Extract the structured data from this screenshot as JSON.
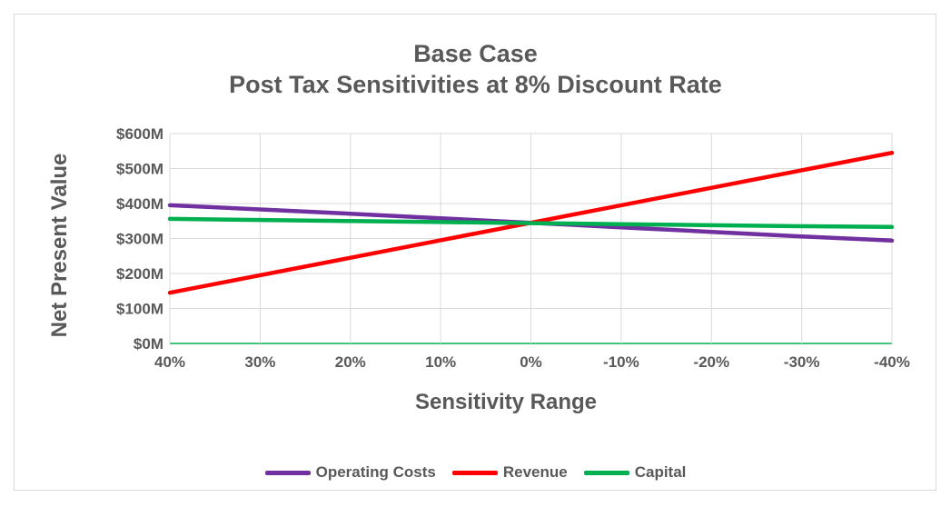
{
  "chart_data": {
    "type": "line",
    "title": "Base Case",
    "subtitle": "Post Tax Sensitivities at 8% Discount Rate",
    "xlabel": "Sensitivity Range",
    "ylabel": "Net Present Value",
    "categories": [
      "40%",
      "30%",
      "20%",
      "10%",
      "0%",
      "-10%",
      "-20%",
      "-30%",
      "-40%"
    ],
    "y_ticks": [
      "$0M",
      "$100M",
      "$200M",
      "$300M",
      "$400M",
      "$500M",
      "$600M"
    ],
    "ylim": [
      0,
      600
    ],
    "grid": true,
    "legend_position": "bottom",
    "series": [
      {
        "name": "Operating Costs",
        "color": "#7030a0",
        "values": [
          395,
          383,
          371,
          358,
          345,
          332,
          319,
          306,
          294
        ]
      },
      {
        "name": "Revenue",
        "color": "#ff0000",
        "values": [
          145,
          195,
          245,
          295,
          345,
          395,
          445,
          495,
          545
        ]
      },
      {
        "name": "Capital",
        "color": "#00b050",
        "values": [
          356,
          353,
          350,
          347,
          344,
          341,
          338,
          335,
          333
        ]
      }
    ]
  }
}
